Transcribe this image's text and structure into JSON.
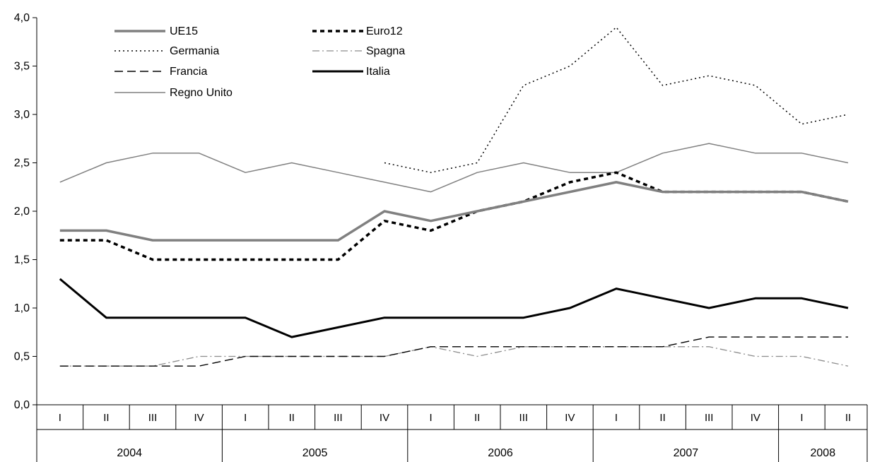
{
  "chart_data": {
    "type": "line",
    "title": "",
    "xlabel": "",
    "ylabel": "",
    "ylim": [
      0,
      4
    ],
    "y_ticks": [
      "0,0",
      "0,5",
      "1,0",
      "1,5",
      "2,0",
      "2,5",
      "3,0",
      "3,5",
      "4,0"
    ],
    "x_quarters": [
      "I",
      "II",
      "III",
      "IV",
      "I",
      "II",
      "III",
      "IV",
      "I",
      "II",
      "III",
      "IV",
      "I",
      "II",
      "III",
      "IV",
      "I",
      "II"
    ],
    "years": [
      {
        "label": "2004",
        "span": 4
      },
      {
        "label": "2005",
        "span": 4
      },
      {
        "label": "2006",
        "span": 4
      },
      {
        "label": "2007",
        "span": 4
      },
      {
        "label": "2008",
        "span": 2
      }
    ],
    "legend_position": "top-left",
    "series": [
      {
        "name": "UE15",
        "style": "thick-gray",
        "color": "#808080",
        "values": [
          1.8,
          1.8,
          1.7,
          1.7,
          1.7,
          1.7,
          1.7,
          2.0,
          1.9,
          2.0,
          2.1,
          2.2,
          2.3,
          2.2,
          2.2,
          2.2,
          2.2,
          2.1
        ]
      },
      {
        "name": "Euro12",
        "style": "thick-dashed",
        "color": "#000000",
        "values": [
          1.7,
          1.7,
          1.5,
          1.5,
          1.5,
          1.5,
          1.5,
          1.9,
          1.8,
          2.0,
          2.1,
          2.3,
          2.4,
          2.2,
          2.2,
          2.2,
          2.2,
          2.1
        ]
      },
      {
        "name": "Germania",
        "style": "dotted",
        "color": "#000000",
        "values": [
          null,
          null,
          null,
          null,
          null,
          null,
          null,
          2.5,
          2.4,
          2.5,
          3.3,
          3.5,
          3.9,
          3.3,
          3.4,
          3.3,
          2.9,
          3.0
        ]
      },
      {
        "name": "Spagna",
        "style": "dash-dot-gray",
        "color": "#808080",
        "values": [
          0.4,
          0.4,
          0.4,
          0.5,
          0.5,
          0.5,
          0.5,
          0.5,
          0.6,
          0.5,
          0.6,
          0.6,
          0.6,
          0.6,
          0.6,
          0.5,
          0.5,
          0.4
        ]
      },
      {
        "name": "Francia",
        "style": "long-dashed",
        "color": "#000000",
        "values": [
          0.4,
          0.4,
          0.4,
          0.4,
          0.5,
          0.5,
          0.5,
          0.5,
          0.6,
          0.6,
          0.6,
          0.6,
          0.6,
          0.6,
          0.7,
          0.7,
          0.7,
          0.7
        ]
      },
      {
        "name": "Italia",
        "style": "thick-black",
        "color": "#000000",
        "values": [
          1.3,
          0.9,
          0.9,
          0.9,
          0.9,
          0.7,
          0.8,
          0.9,
          0.9,
          0.9,
          0.9,
          1.0,
          1.2,
          1.1,
          1.0,
          1.1,
          1.1,
          1.0
        ]
      },
      {
        "name": "Regno Unito",
        "style": "thin-gray",
        "color": "#808080",
        "values": [
          2.3,
          2.5,
          2.6,
          2.6,
          2.4,
          2.5,
          2.4,
          2.3,
          2.2,
          2.4,
          2.5,
          2.4,
          2.4,
          2.6,
          2.7,
          2.6,
          2.6,
          2.5
        ]
      }
    ]
  }
}
